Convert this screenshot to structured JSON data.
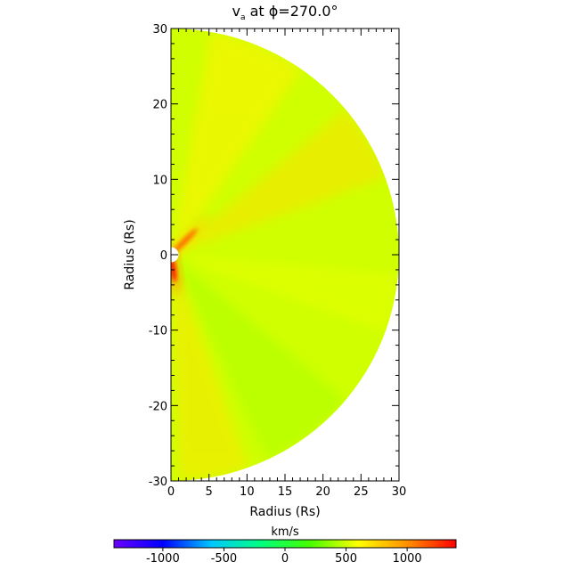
{
  "chart_data": {
    "type": "heatmap",
    "title": "vₐ at ϕ=270.0°",
    "title_parts": {
      "symbol": "v",
      "subscript": "a",
      "rest": " at ϕ=270.0°"
    },
    "xlabel": "Radius (Rs)",
    "ylabel": "Radius (Rs)",
    "xlim": [
      0,
      30
    ],
    "ylim": [
      -30,
      30
    ],
    "x_ticks": [
      0,
      5,
      10,
      15,
      20,
      25,
      30
    ],
    "y_ticks": [
      -30,
      -20,
      -10,
      0,
      10,
      20,
      30
    ],
    "domain_shape": "half-disk, radius 30 Rs, inner hole ~1 Rs",
    "background_value": 500,
    "features": [
      {
        "description": "bright streak",
        "angle_deg": 45,
        "r_range": [
          1,
          4
        ],
        "peak_value": 1100
      },
      {
        "description": "hot spot",
        "angle_deg": -82,
        "r_range": [
          1,
          3
        ],
        "peak_value": 1350
      }
    ],
    "colorbar": {
      "label": "km/s",
      "range": [
        -1400,
        1400
      ],
      "ticks": [
        -1000,
        -500,
        0,
        500,
        1000
      ],
      "colormap": "rainbow",
      "colors": [
        "#6a00ff",
        "#0000ff",
        "#00c8ff",
        "#00ff80",
        "#44ff00",
        "#ffff00",
        "#ff9000",
        "#ff0000"
      ]
    }
  }
}
